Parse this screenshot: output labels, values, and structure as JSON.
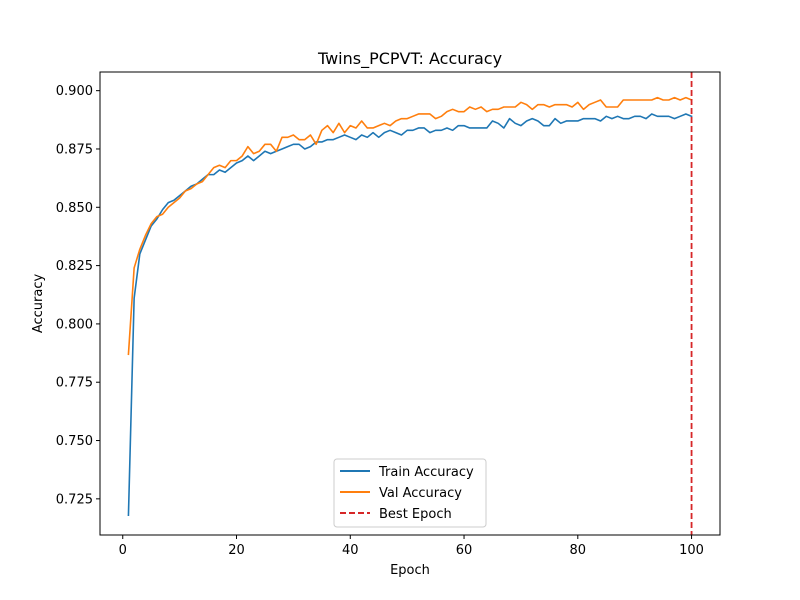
{
  "chart_data": {
    "type": "line",
    "title": "Twins_PCPVT: Accuracy",
    "xlabel": "Epoch",
    "ylabel": "Accuracy",
    "xlim": [
      -4,
      105
    ],
    "ylim": [
      0.7095,
      0.908
    ],
    "xticks": [
      0,
      20,
      40,
      60,
      80,
      100
    ],
    "yticks": [
      0.725,
      0.75,
      0.775,
      0.8,
      0.825,
      0.85,
      0.875,
      0.9
    ],
    "x": [
      1,
      2,
      3,
      4,
      5,
      6,
      7,
      8,
      9,
      10,
      11,
      12,
      13,
      14,
      15,
      16,
      17,
      18,
      19,
      20,
      21,
      22,
      23,
      24,
      25,
      26,
      27,
      28,
      29,
      30,
      31,
      32,
      33,
      34,
      35,
      36,
      37,
      38,
      39,
      40,
      41,
      42,
      43,
      44,
      45,
      46,
      47,
      48,
      49,
      50,
      51,
      52,
      53,
      54,
      55,
      56,
      57,
      58,
      59,
      60,
      61,
      62,
      63,
      64,
      65,
      66,
      67,
      68,
      69,
      70,
      71,
      72,
      73,
      74,
      75,
      76,
      77,
      78,
      79,
      80,
      81,
      82,
      83,
      84,
      85,
      86,
      87,
      88,
      89,
      90,
      91,
      92,
      93,
      94,
      95,
      96,
      97,
      98,
      99,
      100
    ],
    "series": [
      {
        "name": "Train Accuracy",
        "color": "#1f77b4",
        "values": [
          0.718,
          0.811,
          0.83,
          0.836,
          0.842,
          0.845,
          0.849,
          0.852,
          0.853,
          0.855,
          0.857,
          0.859,
          0.86,
          0.862,
          0.864,
          0.864,
          0.866,
          0.865,
          0.867,
          0.869,
          0.87,
          0.872,
          0.87,
          0.872,
          0.874,
          0.873,
          0.874,
          0.875,
          0.876,
          0.877,
          0.877,
          0.875,
          0.876,
          0.878,
          0.878,
          0.879,
          0.879,
          0.88,
          0.881,
          0.88,
          0.879,
          0.881,
          0.88,
          0.882,
          0.88,
          0.882,
          0.883,
          0.882,
          0.881,
          0.883,
          0.883,
          0.884,
          0.884,
          0.882,
          0.883,
          0.883,
          0.884,
          0.883,
          0.885,
          0.885,
          0.884,
          0.884,
          0.884,
          0.884,
          0.887,
          0.886,
          0.884,
          0.888,
          0.886,
          0.885,
          0.887,
          0.888,
          0.887,
          0.885,
          0.885,
          0.888,
          0.886,
          0.887,
          0.887,
          0.887,
          0.888,
          0.888,
          0.888,
          0.887,
          0.889,
          0.888,
          0.889,
          0.888,
          0.888,
          0.889,
          0.889,
          0.888,
          0.89,
          0.889,
          0.889,
          0.889,
          0.888,
          0.889,
          0.89,
          0.889
        ]
      },
      {
        "name": "Val Accuracy",
        "color": "#ff7f0e",
        "values": [
          0.787,
          0.824,
          0.832,
          0.838,
          0.843,
          0.846,
          0.847,
          0.85,
          0.852,
          0.854,
          0.857,
          0.858,
          0.86,
          0.861,
          0.864,
          0.867,
          0.868,
          0.867,
          0.87,
          0.87,
          0.872,
          0.876,
          0.873,
          0.874,
          0.877,
          0.877,
          0.874,
          0.88,
          0.88,
          0.881,
          0.879,
          0.879,
          0.881,
          0.877,
          0.883,
          0.885,
          0.882,
          0.886,
          0.882,
          0.885,
          0.884,
          0.887,
          0.884,
          0.884,
          0.885,
          0.886,
          0.885,
          0.887,
          0.888,
          0.888,
          0.889,
          0.89,
          0.89,
          0.89,
          0.888,
          0.889,
          0.891,
          0.892,
          0.891,
          0.891,
          0.893,
          0.892,
          0.893,
          0.891,
          0.892,
          0.892,
          0.893,
          0.893,
          0.893,
          0.895,
          0.894,
          0.892,
          0.894,
          0.894,
          0.893,
          0.894,
          0.894,
          0.894,
          0.893,
          0.895,
          0.892,
          0.894,
          0.895,
          0.896,
          0.893,
          0.893,
          0.893,
          0.896,
          0.896,
          0.896,
          0.896,
          0.896,
          0.896,
          0.897,
          0.896,
          0.896,
          0.897,
          0.896,
          0.897,
          0.896
        ]
      }
    ],
    "best_epoch": {
      "name": "Best Epoch",
      "x": 100,
      "color": "#d62728"
    },
    "legend_position": "lower-center"
  }
}
